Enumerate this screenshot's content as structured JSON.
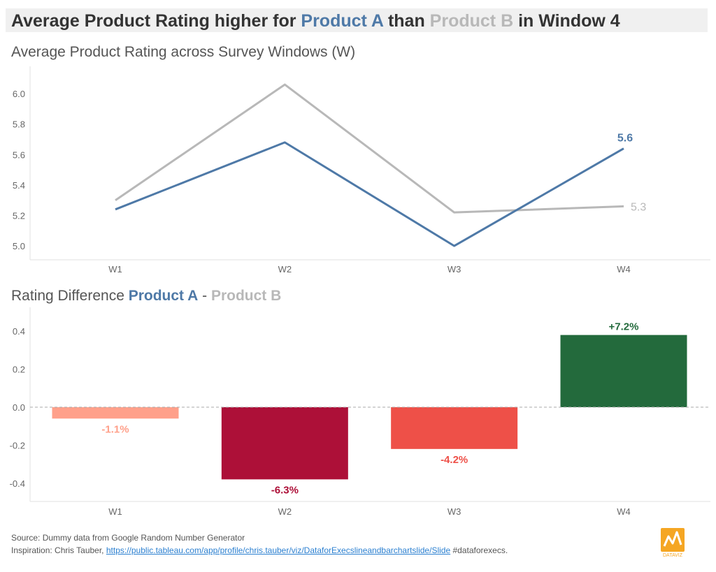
{
  "title": {
    "part1": "Average Product Rating higher for ",
    "product_a": "Product A",
    "part2": " than ",
    "product_b": "Product B",
    "part3": " in Window 4"
  },
  "line_subtitle": "Average Product Rating across Survey Windows (W)",
  "bar_subtitle": {
    "prefix": "Rating Difference ",
    "product_a": "Product A",
    "separator": " - ",
    "product_b": "Product B"
  },
  "colors": {
    "product_a": "#4e79a7",
    "product_b": "#b8b8b8",
    "bar_w1": "#ffa08a",
    "bar_w2": "#ad1038",
    "bar_w3": "#ee5048",
    "bar_w4": "#236a3c"
  },
  "chart_data": [
    {
      "type": "line",
      "title": "Average Product Rating across Survey Windows (W)",
      "categories": [
        "W1",
        "W2",
        "W3",
        "W4"
      ],
      "series": [
        {
          "name": "Product A",
          "values": [
            5.24,
            5.68,
            5.0,
            5.64
          ],
          "color": "#4e79a7"
        },
        {
          "name": "Product B",
          "values": [
            5.3,
            6.06,
            5.22,
            5.26
          ],
          "color": "#b8b8b8"
        }
      ],
      "end_labels": [
        "5.6",
        "5.3"
      ],
      "yticks": [
        "6.0",
        "5.8",
        "5.6",
        "5.4",
        "5.2",
        "5.0"
      ],
      "ylim": [
        4.95,
        6.12
      ],
      "grid": false
    },
    {
      "type": "bar",
      "title": "Rating Difference Product A - Product B",
      "categories": [
        "W1",
        "W2",
        "W3",
        "W4"
      ],
      "values": [
        -0.06,
        -0.38,
        -0.22,
        0.38
      ],
      "labels": [
        "-1.1%",
        "-6.3%",
        "-4.2%",
        "+7.2%"
      ],
      "bar_colors": [
        "#ffa08a",
        "#ad1038",
        "#ee5048",
        "#236a3c"
      ],
      "yticks": [
        "0.4",
        "0.2",
        "0.0",
        "-0.2",
        "-0.4"
      ],
      "ylim": [
        -0.5,
        0.5
      ],
      "zero_line": "dashed"
    }
  ],
  "footer": {
    "source": "Source: Dummy data from Google Random Number Generator",
    "inspiration_prefix": "Inspiration: Chris Tauber, ",
    "inspiration_link": "https://public.tableau.com/app/profile/chris.tauber/viz/DataforExecslineandbarchartslide/Slide",
    "inspiration_suffix": " #dataforexecs."
  },
  "logo_text": "DATAVIZ"
}
